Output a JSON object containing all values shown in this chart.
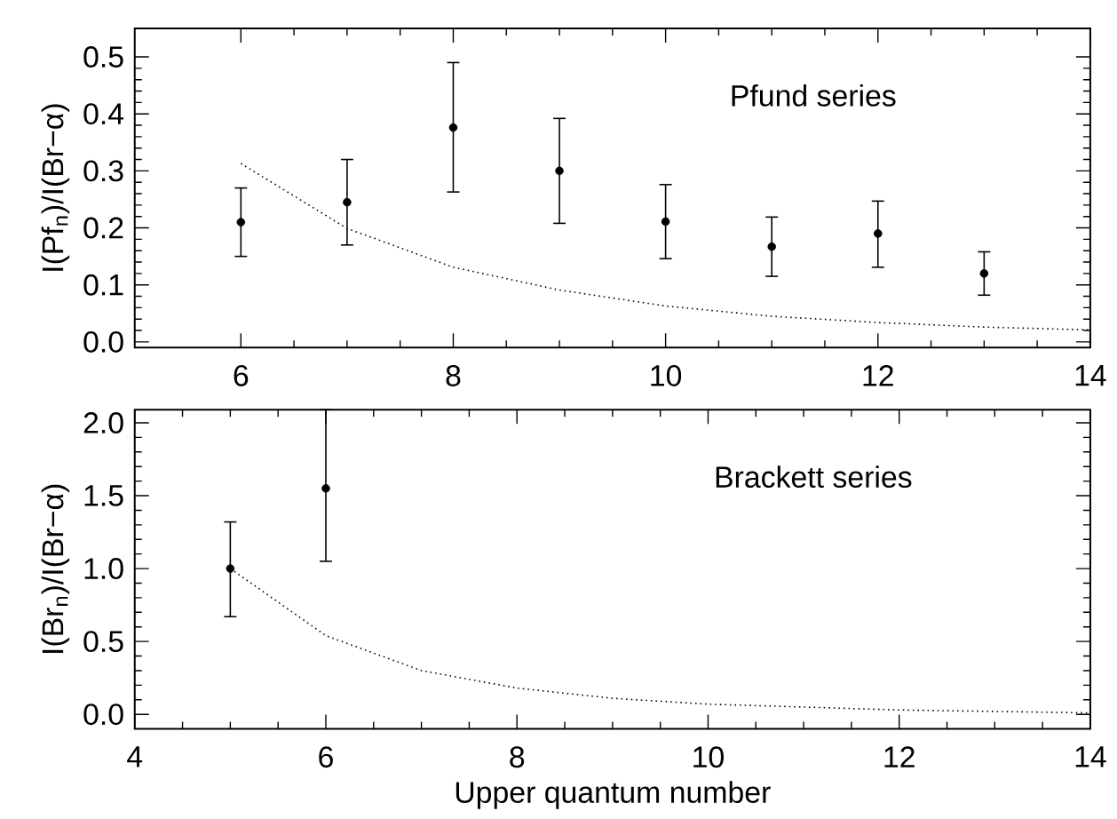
{
  "chart_data": [
    {
      "type": "scatter",
      "ylabel": "I(Pf$_{n}$)/I(Br−α)",
      "annotations": [
        "Pfund series"
      ],
      "xlim": [
        5,
        14
      ],
      "xticks": [
        6,
        8,
        10,
        12,
        14
      ],
      "ylim": [
        -0.01,
        0.55
      ],
      "yticks": [
        {
          "value": 0,
          "label": "0.0"
        },
        0.1,
        0.2,
        0.3,
        0.4,
        0.5
      ],
      "series": [
        {
          "color": "#000000",
          "marker": "circle",
          "x": [
            6,
            7,
            8,
            9,
            10,
            11,
            12,
            13
          ],
          "values": [
            0.21,
            0.245,
            0.376,
            0.3,
            0.211,
            0.167,
            0.19,
            0.12
          ],
          "errors": [
            [
              0.15,
              0.27
            ],
            [
              0.17,
              0.32
            ],
            [
              0.263,
              0.49
            ],
            [
              0.208,
              0.392
            ],
            [
              0.146,
              0.276
            ],
            [
              0.115,
              0.219
            ],
            [
              0.131,
              0.247
            ],
            [
              0.082,
              0.158
            ]
          ]
        },
        {
          "type": "line",
          "color": "#000000",
          "line_style": "dotted",
          "marker": "none",
          "x": [
            6,
            7,
            8,
            9,
            10,
            11,
            12,
            13,
            14
          ],
          "values": [
            0.313,
            0.199,
            0.131,
            0.091,
            0.063,
            0.045,
            0.034,
            0.026,
            0.021
          ]
        }
      ]
    },
    {
      "type": "scatter",
      "xlabel": "Upper quantum number",
      "ylabel": "I(Br$_{n}$)/I(Br−α)",
      "annotations": [
        "Brackett series"
      ],
      "xlim": [
        4,
        14
      ],
      "xticks": [
        4,
        6,
        8,
        10,
        12,
        14
      ],
      "ylim": [
        -0.1,
        2.09
      ],
      "yticks": [
        {
          "value": 0,
          "label": "0.0"
        },
        0.5,
        {
          "value": 1,
          "label": "1.0"
        },
        1.5,
        {
          "value": 2,
          "label": "2.0"
        }
      ],
      "series": [
        {
          "color": "#000000",
          "marker": "circle",
          "x": [
            5,
            6
          ],
          "values": [
            1.0,
            1.55
          ],
          "errors": [
            [
              0.67,
              1.32
            ],
            [
              1.05,
              2.09
            ]
          ]
        },
        {
          "type": "line",
          "color": "#000000",
          "line_style": "dotted",
          "marker": "none",
          "x": [
            5,
            6,
            7,
            8,
            9,
            10,
            11,
            12,
            13,
            14
          ],
          "values": [
            1.0,
            0.54,
            0.3,
            0.18,
            0.11,
            0.07,
            0.05,
            0.03,
            0.02,
            0.01
          ]
        }
      ]
    }
  ]
}
